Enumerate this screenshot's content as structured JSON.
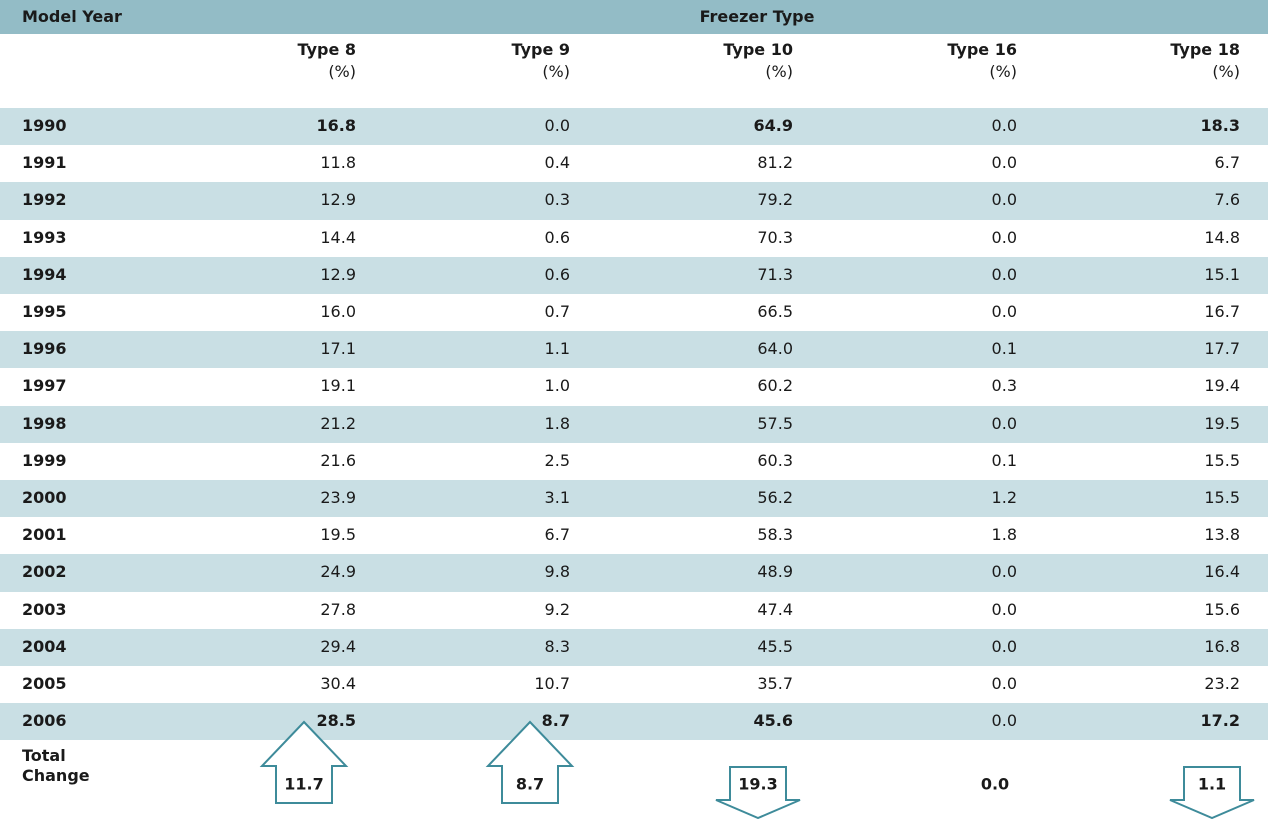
{
  "header": {
    "left": "Model Year",
    "group": "Freezer Type"
  },
  "columns": [
    {
      "name": "Type 8",
      "unit": "(%)"
    },
    {
      "name": "Type 9",
      "unit": "(%)"
    },
    {
      "name": "Type 10",
      "unit": "(%)"
    },
    {
      "name": "Type 16",
      "unit": "(%)"
    },
    {
      "name": "Type 18",
      "unit": "(%)"
    }
  ],
  "table": {
    "rows": [
      [
        "1990",
        "16.8",
        "0.0",
        "64.9",
        "0.0",
        "18.3"
      ],
      [
        "1991",
        "11.8",
        "0.4",
        "81.2",
        "0.0",
        "6.7"
      ],
      [
        "1992",
        "12.9",
        "0.3",
        "79.2",
        "0.0",
        "7.6"
      ],
      [
        "1993",
        "14.4",
        "0.6",
        "70.3",
        "0.0",
        "14.8"
      ],
      [
        "1994",
        "12.9",
        "0.6",
        "71.3",
        "0.0",
        "15.1"
      ],
      [
        "1995",
        "16.0",
        "0.7",
        "66.5",
        "0.0",
        "16.7"
      ],
      [
        "1996",
        "17.1",
        "1.1",
        "64.0",
        "0.1",
        "17.7"
      ],
      [
        "1997",
        "19.1",
        "1.0",
        "60.2",
        "0.3",
        "19.4"
      ],
      [
        "1998",
        "21.2",
        "1.8",
        "57.5",
        "0.0",
        "19.5"
      ],
      [
        "1999",
        "21.6",
        "2.5",
        "60.3",
        "0.1",
        "15.5"
      ],
      [
        "2000",
        "23.9",
        "3.1",
        "56.2",
        "1.2",
        "15.5"
      ],
      [
        "2001",
        "19.5",
        "6.7",
        "58.3",
        "1.8",
        "13.8"
      ],
      [
        "2002",
        "24.9",
        "9.8",
        "48.9",
        "0.0",
        "16.4"
      ],
      [
        "2003",
        "27.8",
        "9.2",
        "47.4",
        "0.0",
        "15.6"
      ],
      [
        "2004",
        "29.4",
        "8.3",
        "45.5",
        "0.0",
        "16.8"
      ],
      [
        "2005",
        "30.4",
        "10.7",
        "35.7",
        "0.0",
        "23.2"
      ],
      [
        "2006",
        "28.5",
        "8.7",
        "45.6",
        "0.0",
        "17.2"
      ]
    ]
  },
  "total_change": {
    "label": "Total Change",
    "values": [
      "11.7",
      "8.7",
      "19.3",
      "0.0",
      "1.1"
    ],
    "directions": [
      "up",
      "up",
      "down",
      "none",
      "down"
    ]
  }
}
